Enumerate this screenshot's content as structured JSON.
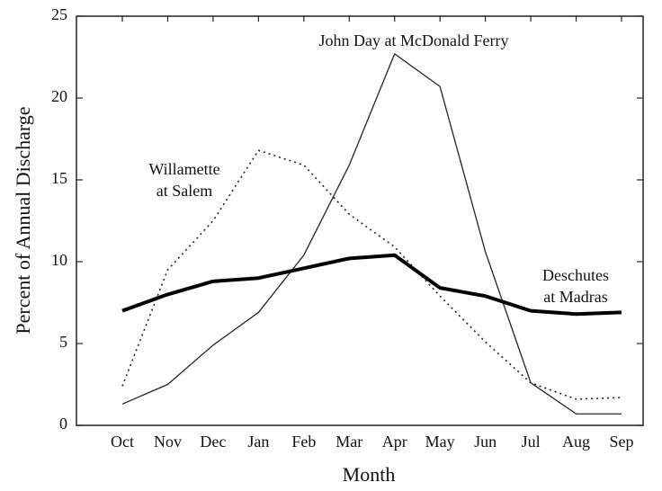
{
  "chart_data": {
    "type": "line",
    "xlabel": "Month",
    "ylabel": "Percent of Annual Discharge",
    "categories": [
      "Oct",
      "Nov",
      "Dec",
      "Jan",
      "Feb",
      "Mar",
      "Apr",
      "May",
      "Jun",
      "Jul",
      "Aug",
      "Sep"
    ],
    "series": [
      {
        "label_lines": [
          "John Day at McDonald Ferry"
        ],
        "color": "#222222",
        "style": "solid",
        "width": 1.3,
        "values": [
          1.3,
          2.5,
          4.9,
          6.9,
          10.4,
          15.9,
          22.7,
          20.7,
          10.6,
          2.6,
          0.7,
          0.7
        ]
      },
      {
        "label_lines": [
          "Willamette",
          "at Salem"
        ],
        "color": "#222222",
        "style": "dotted",
        "width": 1.6,
        "values": [
          2.4,
          9.5,
          12.5,
          16.8,
          15.9,
          12.9,
          10.9,
          7.9,
          5.1,
          2.6,
          1.6,
          1.7
        ]
      },
      {
        "label_lines": [
          "Deschutes",
          "at Madras"
        ],
        "color": "#000000",
        "style": "solid",
        "width": 4,
        "values": [
          7.0,
          8.0,
          8.8,
          9.0,
          9.6,
          10.2,
          10.4,
          8.4,
          7.9,
          7.0,
          6.8,
          6.9
        ]
      }
    ],
    "ylim": [
      0,
      25
    ],
    "yticks": [
      0,
      5,
      10,
      15,
      20,
      25
    ],
    "grid": false
  }
}
